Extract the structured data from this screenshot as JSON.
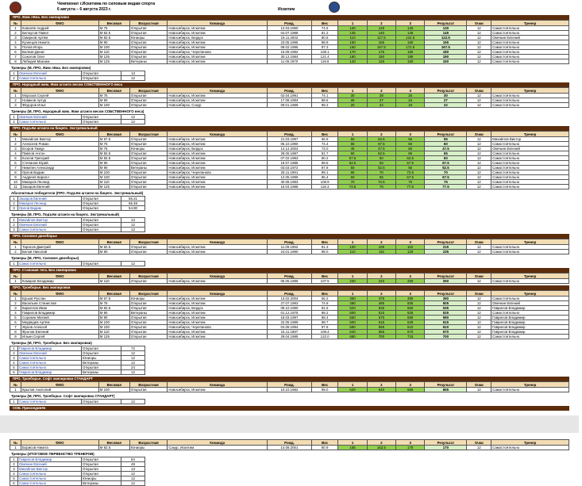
{
  "header": {
    "title": "Чемпионат г.Искитима по силовым видам спорта",
    "dates": "6 августа – 6 августа 2023 г.",
    "city": "Искитим"
  },
  "columns": [
    "№",
    "ФИО",
    "Весовая",
    "Возрастная",
    "Команда",
    "Рожд.",
    "Вес",
    "1",
    "2",
    "3",
    "Результат",
    "Очки",
    "Тренер"
  ],
  "pages": [
    {
      "sections": [
        {
          "title": "ПРО. Жим лёжа. Без экипировки",
          "rows": [
            [
              "1",
              "Ковалёв Андрей",
              "М 75",
              "Открытая",
              "Новосибирск, Искитим",
              "12.03.1990",
              "74.5",
              "120",
              "125",
              "130",
              "130",
              "12",
              "Самостоятельно"
            ],
            [
              "2",
              "Белоусов Павел",
              "М 82.5",
              "Открытая",
              "Новосибирск, Искитим",
              "04.07.1988",
              "81.2",
              "135",
              "140",
              "145",
              "145",
              "12",
              "Самостоятельно"
            ],
            [
              "3",
              "Смирнов Артём",
              "М 82.5",
              "Юниоры",
              "Новосибирск, Бердск",
              "19.11.2002",
              "80.6",
              "110",
              "117.5",
              "122.5",
              "122.5",
              "12",
              "Овечкин Евгений"
            ],
            [
              "4",
              "Кузнецов Никита",
              "М 90",
              "Открытая",
              "Новосибирск, Искитим",
              "23.05.1995",
              "88.9",
              "150",
              "155",
              "160",
              "155",
              "12",
              "Самостоятельно"
            ],
            [
              "5",
              "Попов Игорь",
              "М 100",
              "Открытая",
              "Новосибирск, Искитим",
              "08.02.1986",
              "97.3",
              "160",
              "167.5",
              "172.5",
              "167.5",
              "12",
              "Самостоятельно"
            ],
            [
              "6",
              "Волков Денис",
              "М 110",
              "Открытая",
              "Новосибирск, Черепаново",
              "15.09.1992",
              "108.1",
              "170",
              "175",
              "180",
              "180",
              "12",
              "Самостоятельно"
            ],
            [
              "7",
              "Соколов Олег",
              "М 125",
              "Открытая",
              "Новосибирск, Искитим",
              "30.12.1984",
              "121.4",
              "180",
              "190",
              "195",
              "190",
              "12",
              "Самостоятельно"
            ],
            [
              "8",
              "Лебедев Максим",
              "М 125",
              "Ветераны",
              "Новосибирск, Искитим",
              "11.06.1970",
              "119.8",
              "140",
              "145",
              "150",
              "150",
              "12",
              "Самостоятельно"
            ]
          ],
          "groups": [
            {
              "title": "Тренеры (М, ПРО, Жим лёжа. Без экипировки)",
              "rows": [
                [
                  "1",
                  "Овечкин Евгений",
                  "Открытая",
                  "13"
                ],
                [
                  "2",
                  "Самостоятельно",
                  "Открытая",
                  "12"
                ]
              ]
            }
          ]
        },
        {
          "title": "ПРО. Народный жим. Жим штанги весом СОБСТВЕННОГО веса",
          "rows": [
            [
              "1",
              "Морозов Сергей",
              "М 75",
              "Открытая",
              "Новосибирск, Искитим",
              "02.04.1991",
              "74.1",
              "30",
              "28",
              "25",
              "30",
              "12",
              "Самостоятельно"
            ],
            [
              "2",
              "Новиков Артур",
              "М 90",
              "Открытая",
              "Новосибирск, Искитим",
              "17.08.1994",
              "88.6",
              "25",
              "27",
              "24",
              "27",
              "12",
              "Самостоятельно"
            ],
            [
              "3",
              "Фёдоров Илья",
              "М 100",
              "Открытая",
              "Новосибирск, Сокур",
              "09.01.1989",
              "98.2",
              "20",
              "22",
              "18",
              "22",
              "12",
              "Самостоятельно"
            ]
          ],
          "groups": [
            {
              "title": "Тренеры (М, ПРО, Народный жим. Жим штанги весом СОБСТВЕННОГО веса)",
              "rows": [
                [
                  "1",
                  "Овечкин Евгений",
                  "Открытая",
                  "12"
                ],
                [
                  "2",
                  "Самостоятельно",
                  "Открытая",
                  "12"
                ]
              ]
            }
          ]
        },
        {
          "title": "ПРО. Подъём штанги на бицепс. Экстремальный",
          "rows": [
            [
              "1",
              "Михайлов Виктор",
              "М 67.5",
              "Открытая",
              "Новосибирск, Искитим",
              "21.03.1997",
              "66.9",
              "50",
              "52.5",
              "55",
              "55",
              "12",
              "Михайлов Виктор"
            ],
            [
              "2",
              "Алексеев Роман",
              "М 75",
              "Открытая",
              "Новосибирск, Искитим",
              "05.10.1990",
              "74.4",
              "55",
              "57.5",
              "60",
              "60",
              "12",
              "Самостоятельно"
            ],
            [
              "3",
              "Егоров Тимур",
              "М 75",
              "Юниоры",
              "Новосибирск, Бердск",
              "14.12.2003",
              "73.0",
              "45",
              "47.5",
              "50",
              "47.5",
              "12",
              "Овечкин Евгений"
            ],
            [
              "4",
              "Павлов Антон",
              "М 82.5",
              "Открытая",
              "Новосибирск, Искитим",
              "28.06.1987",
              "81.7",
              "60",
              "62.5",
              "65",
              "65",
              "12",
              "Самостоятельно"
            ],
            [
              "5",
              "Козлов Григорий",
              "М 82.5",
              "Открытая",
              "Новосибирск, Искитим",
              "07.02.1993",
              "80.2",
              "57.5",
              "60",
              "62.5",
              "60",
              "12",
              "Самостоятельно"
            ],
            [
              "6",
              "Степанов Юрий",
              "М 90",
              "Открытая",
              "Новосибирск, Искитим",
              "19.07.1985",
              "89.5",
              "62.5",
              "65",
              "67.5",
              "67.5",
              "12",
              "Самостоятельно"
            ],
            [
              "7",
              "Никитин Александр",
              "М 90",
              "Ветераны",
              "Новосибирск, Искитим",
              "03.03.1972",
              "87.8",
              "50",
              "52.5",
              "55",
              "52.5",
              "12",
              "Самостоятельно"
            ],
            [
              "8",
              "Орлов Вадим",
              "М 100",
              "Открытая",
              "Новосибирск, Черепаново",
              "25.11.1991",
              "99.1",
              "65",
              "70",
              "72.5",
              "70",
              "12",
              "Самостоятельно"
            ],
            [
              "9",
              "Андреев Кирилл",
              "М 100",
              "Открытая",
              "Новосибирск, Искитим",
              "12.05.1996",
              "96.4",
              "60",
              "65",
              "67.5",
              "67.5",
              "12",
              "Самостоятельно"
            ],
            [
              "10",
              "Макаров Леонид",
              "М 110",
              "Открытая",
              "Новосибирск, Искитим",
              "30.08.1983",
              "108.9",
              "70",
              "72.5",
              "75",
              "75",
              "12",
              "Самостоятельно"
            ],
            [
              "11",
              "Захаров Евгений",
              "М 125",
              "Открытая",
              "Новосибирск, Искитим",
              "16.04.1988",
              "118.3",
              "72.5",
              "75",
              "77.5",
              "77.5",
              "12",
              "Самостоятельно"
            ]
          ],
          "groups": [
            {
              "title": "Абсолютные победители (ПРО. Подъём штанги на бицепс. Экстремальный)",
              "rows": [
                [
                  "1",
                  "Захаров Евгений",
                  "Открытая",
                  "56.21"
                ],
                [
                  "2",
                  "Макаров Леонид",
                  "Открытая",
                  "55.48"
                ],
                [
                  "3",
                  "Орлов Вадим",
                  "Открытая",
                  "54.90"
                ]
              ]
            },
            {
              "title": "Тренеры (М, ПРО, Подъём штанги на бицепс. Экстремальный)",
              "rows": [
                [
                  "1",
                  "Михайлов Виктор",
                  "Открытая",
                  "13"
                ],
                [
                  "2",
                  "Овечкин Евгений",
                  "Открытая",
                  "12"
                ],
                [
                  "3",
                  "Самостоятельно",
                  "Открытая",
                  "12"
                ]
              ]
            }
          ]
        },
        {
          "title": "ПРО. Силовое двоеборье",
          "rows": [
            [
              "1",
              "Тарасов Дмитрий",
              "М 82.5",
              "Открытая",
              "Новосибирск, Искитим",
              "11.09.1992",
              "81.3",
              "100",
              "105",
              "110",
              "215",
              "12",
              "Самостоятельно"
            ],
            [
              "2",
              "Белов Николай",
              "М 90",
              "Открытая",
              "Новосибирск, Искитим",
              "24.01.1990",
              "88.0",
              "110",
              "115",
              "120",
              "235",
              "12",
              "Самостоятельно"
            ]
          ],
          "groups": [
            {
              "title": "Тренеры (М, ПРО, Силовое двоеборье)",
              "rows": [
                [
                  "1",
                  "Самостоятельно",
                  "Открытая",
                  "12"
                ]
              ]
            }
          ]
        },
        {
          "title": "ПРО. Становая тяга. Без экипировки",
          "rows": [
            [
              "1",
              "Комаров Владимир",
              "М 110",
              "Открытая",
              "Новосибирск, Искитим",
              "06.06.1986",
              "107.5",
              "230",
              "240",
              "250",
              "250",
              "12",
              "Самостоятельно"
            ]
          ],
          "groups": []
        },
        {
          "title": "ПРО. Троеборье. Без экипировки",
          "rows": [
            [
              "1",
              "Ершов Руслан",
              "М 67.5",
              "Юниоры",
              "Новосибирск, Искитим",
              "13.02.2004",
              "66.2",
              "360",
              "375",
              "390",
              "390",
              "12",
              "Самостоятельно"
            ],
            [
              "2",
              "Васильев Станислав",
              "М 75",
              "Открытая",
              "Новосибирск, Искитим",
              "27.07.1993",
              "74.8",
              "480",
              "495",
              "505",
              "505",
              "12",
              "Овечкин Евгений"
            ],
            [
              "3",
              "Кириллов Иван",
              "М 82.5",
              "Открытая",
              "Новосибирск, Бердск",
              "09.10.1990",
              "81.5",
              "520",
              "535",
              "550",
              "535",
              "12",
              "Гаврилов Владимир"
            ],
            [
              "4",
              "Гаврилов Владимир",
              "М 90",
              "Ветераны",
              "Новосибирск, Искитим",
              "01.12.1975",
              "89.2",
              "500",
              "515",
              "525",
              "525",
              "12",
              "Самостоятельно"
            ],
            [
              "5",
              "Сорокин Матвей",
              "М 90",
              "Открытая",
              "Новосибирск, Искитим",
              "18.03.1997",
              "88.4",
              "560",
              "575",
              "590",
              "590",
              "12",
              "Гаврилов Владимир"
            ],
            [
              "6",
              "Медведев Артём",
              "М 100",
              "Открытая",
              "Новосибирск, Искитим",
              "22.05.1989",
              "98.7",
              "600",
              "615",
              "630",
              "615",
              "12",
              "Гаврилов Владимир"
            ],
            [
              "7",
              "Жуков Алексей",
              "М 100",
              "Открытая",
              "Новосибирск, Черепаново",
              "04.08.1994",
              "97.6",
              "580",
              "595",
              "610",
              "610",
              "12",
              "Гаврилов Владимир"
            ],
            [
              "8",
              "Фролов Евгений",
              "М 110",
              "Открытая",
              "Новосибирск, Искитим",
              "15.11.1987",
              "109.4",
              "640",
              "655",
              "670",
              "670",
              "12",
              "Гаврилов Владимир"
            ],
            [
              "9",
              "Ильин Сергей",
              "М 125",
              "Открытая",
              "Новосибирск, Искитим",
              "29.04.1985",
              "122.0",
              "680",
              "700",
              "715",
              "700",
              "12",
              "Самостоятельно"
            ]
          ],
          "groups": [
            {
              "title": "Тренеры (М, ПРО, Троеборье. Без экипировки)",
              "rows": [
                [
                  "1",
                  "Гаврилов Владимир",
                  "Открытая",
                  "72"
                ],
                [
                  "2",
                  "Овечкин Евгений",
                  "Открытая",
                  "12"
                ],
                [
                  "3",
                  "Самостоятельно",
                  "Юниоры",
                  "12"
                ],
                [
                  "4",
                  "Самостоятельно",
                  "Ветераны",
                  "12"
                ],
                [
                  "5",
                  "Самостоятельно",
                  "Открытая",
                  "24"
                ],
                [
                  "6",
                  "Гаврилов Владимир",
                  "Ветераны",
                  "12"
                ]
              ]
            }
          ]
        },
        {
          "title": "ПРО. Троеборье. Софт экипировка СТАНДАРТ",
          "rows": [
            [
              "1",
              "Крылов Анатолий",
              "М 100",
              "Открытая",
              "Новосибирск, Искитим",
              "10.10.1982",
              "99.0",
              "620",
              "640",
              "655",
              "655",
              "12",
              "Самостоятельно"
            ]
          ],
          "groups": [
            {
              "title": "Тренеры (М, ПРО, Троеборье. Софт экипировка СТАНДАРТ)",
              "rows": [
                [
                  "1",
                  "Самостоятельно",
                  "Открытая",
                  "12"
                ]
              ]
            }
          ]
        },
        {
          "title": "СОБ. Присоединён",
          "rows": [],
          "groups": []
        }
      ]
    },
    {
      "sections": [
        {
          "rows": [
            [
              "1",
              "Борисов Никита",
              "М 82.5",
              "Юниоры",
              "Сокур, Искитим",
              "14.08.2001",
              "80.9",
              "155",
              "162.5",
              "170",
              "170",
              "12",
              "Самостоятельно"
            ]
          ],
          "groups": [
            {
              "title": "Тренеры (ИТОГОВОЕ ПЕРВЕНСТВО ТРЕНЕРОВ)",
              "rows": [
                [
                  "1",
                  "Гаврилов Владимир",
                  "Открытая",
                  "84"
                ],
                [
                  "2",
                  "Овечкин Евгений",
                  "Открытая",
                  "49"
                ],
                [
                  "3",
                  "Михайлов Виктор",
                  "Открытая",
                  "13"
                ],
                [
                  "4",
                  "Самостоятельно",
                  "Открытая",
                  "12"
                ],
                [
                  "5",
                  "Самостоятельно",
                  "Юниоры",
                  "12"
                ],
                [
                  "6",
                  "Самостоятельно",
                  "Ветераны",
                  "12"
                ]
              ]
            }
          ]
        }
      ]
    }
  ]
}
